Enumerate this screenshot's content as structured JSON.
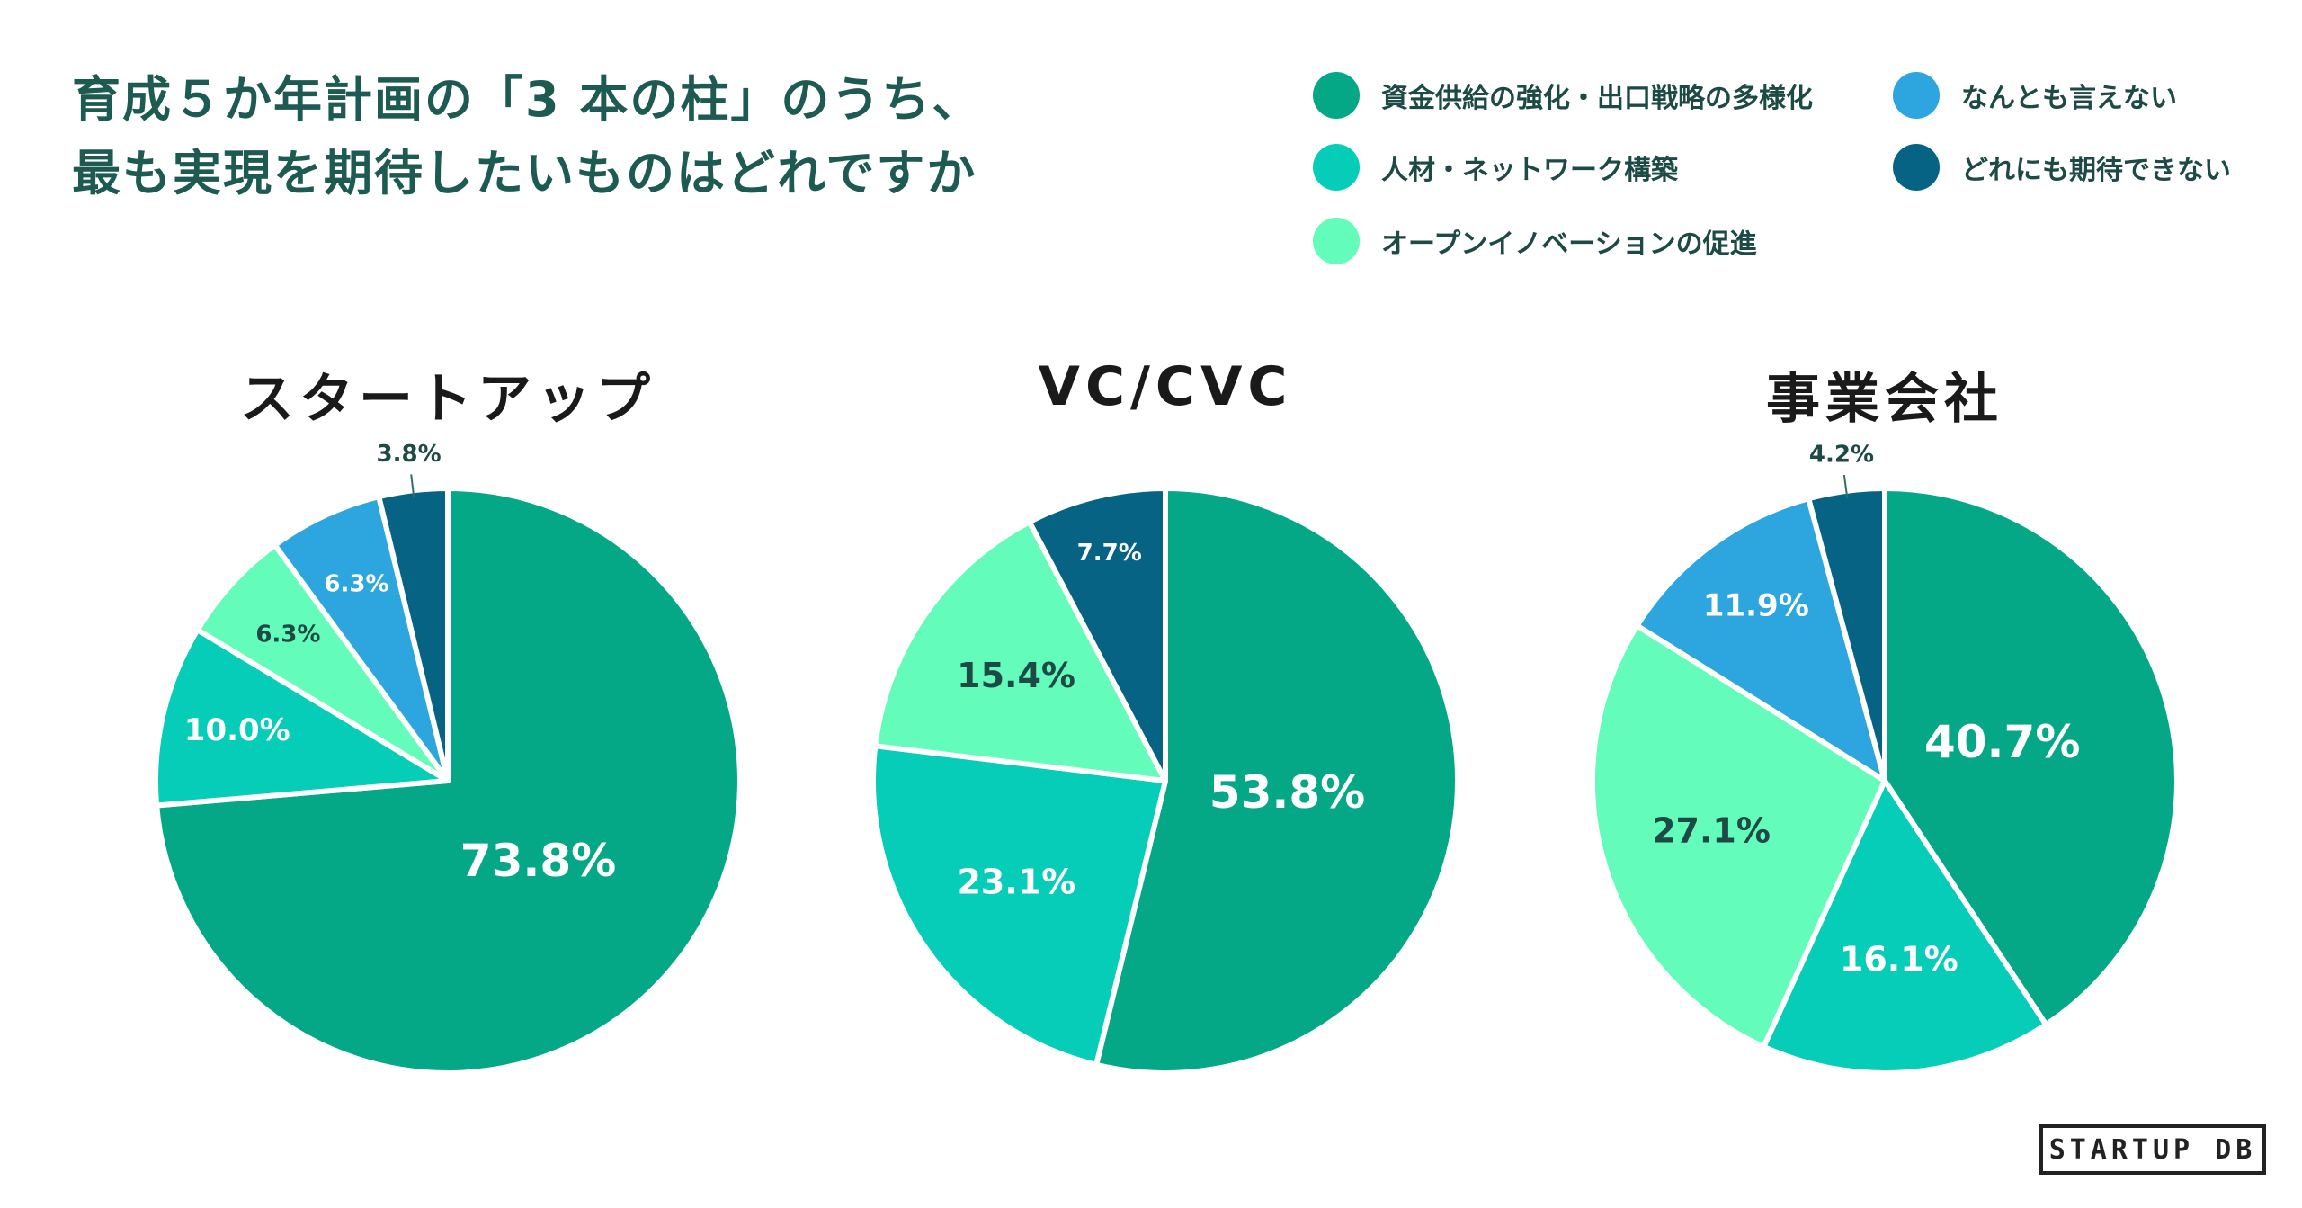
{
  "title_lines": [
    "育成５か年計画の「3 本の柱」のうち、",
    "最も実現を期待したいものはどれですか"
  ],
  "legend": [
    {
      "label": "資金供給の強化・出口戦略の多様化",
      "color": "#05a886"
    },
    {
      "label": "人材・ネットワーク構築",
      "color": "#05cdb7"
    },
    {
      "label": "オープンイノベーションの促進",
      "color": "#63fcba"
    },
    {
      "label": "なんとも言えない",
      "color": "#2da5df"
    },
    {
      "label": "どれにも期待できない",
      "color": "#066384"
    }
  ],
  "logo": "STARTUP DB",
  "chart_data": [
    {
      "type": "pie",
      "title": "スタートアップ",
      "categories": [
        "資金供給の強化・出口戦略の多様化",
        "人材・ネットワーク構築",
        "オープンイノベーションの促進",
        "なんとも言えない",
        "どれにも期待できない"
      ],
      "values": [
        73.8,
        10.0,
        6.3,
        6.3,
        3.8
      ],
      "labels": [
        "73.8%",
        "10.0%",
        "6.3%",
        "6.3%",
        "3.8%"
      ]
    },
    {
      "type": "pie",
      "title": "VC/CVC",
      "categories": [
        "資金供給の強化・出口戦略の多様化",
        "人材・ネットワーク構築",
        "オープンイノベーションの促進",
        "なんとも言えない",
        "どれにも期待できない"
      ],
      "values": [
        53.8,
        23.1,
        15.4,
        0,
        7.7
      ],
      "labels": [
        "53.8%",
        "23.1%",
        "15.4%",
        "",
        "7.7%"
      ]
    },
    {
      "type": "pie",
      "title": "事業会社",
      "categories": [
        "資金供給の強化・出口戦略の多様化",
        "人材・ネットワーク構築",
        "オープンイノベーションの促進",
        "なんとも言えない",
        "どれにも期待できない"
      ],
      "values": [
        40.7,
        16.1,
        27.1,
        11.9,
        4.2
      ],
      "labels": [
        "40.7%",
        "16.1%",
        "27.1%",
        "11.9%",
        "4.2%"
      ]
    }
  ]
}
